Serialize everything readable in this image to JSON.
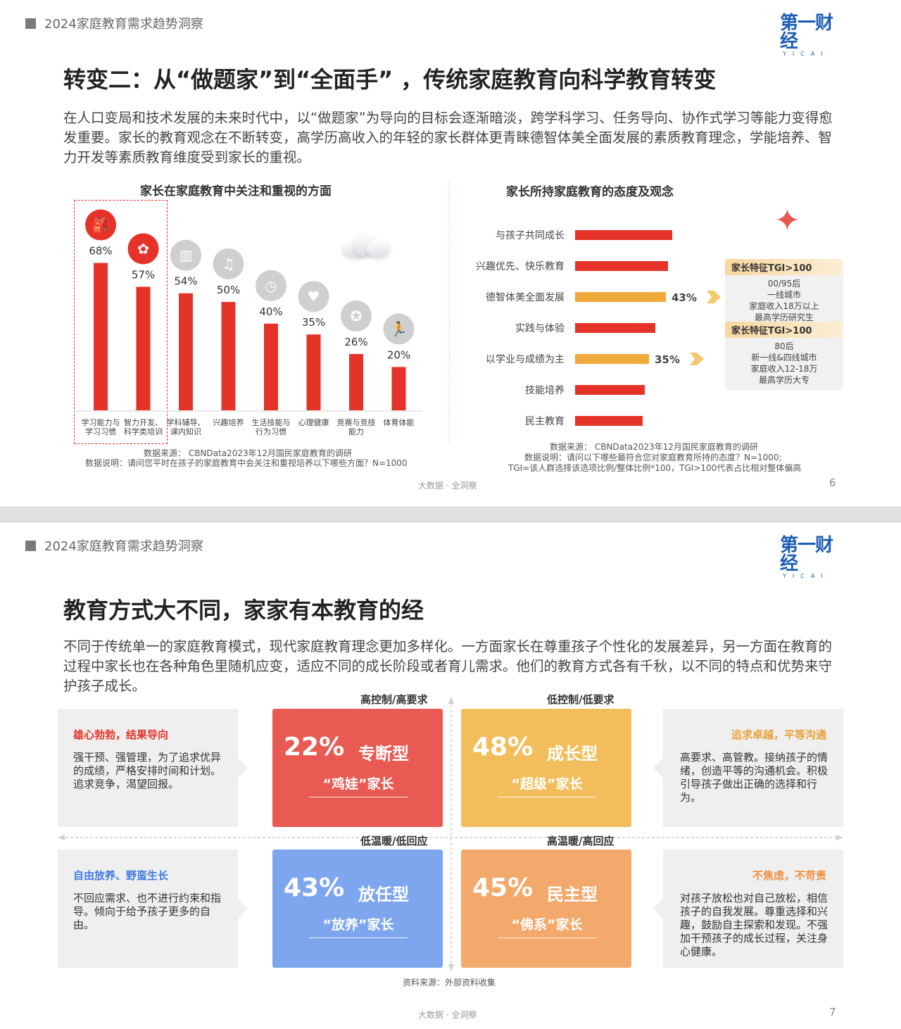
{
  "page1": {
    "header": "2024家庭教育需求趋势洞察",
    "logo": {
      "text": "第一财经",
      "sub": "YICAI"
    },
    "title": "转变二：从“做题家”到“全面手”  ，传统家庭教育向科学教育转变",
    "intro": "在人口变局和技术发展的未来时代中，以“做题家”为导向的目标会逐渐暗淡，跨学科学习、任务导向、协作式学习等能力变得愈发重要。家长的教育观念在不断转变，高学历高收入的年轻的家长群体更青睐德智体美全面发展的素质教育理念，学能培养、智力开发等素质教育维度受到家长的重视。",
    "chart_left_notes": [
      "数据来源： CBNData2023年12月国民家庭教育的调研",
      "数据说明：请问您平时在孩子的家庭教育中会关注和重视培养以下哪些方面？N=1000"
    ],
    "chart_right_notes": [
      "数据来源： CBNData2023年12月国民家庭教育的调研",
      "数据说明：请问以下哪些最符合您对家庭教育所持的态度？N=1000;",
      "TGI=该人群选择该选项比例/整体比例*100，TGI>100代表占比相对整体偏高"
    ],
    "tgi1": {
      "title": "家长特征TGI>100",
      "lines": [
        "00/95后",
        "一线城市",
        "家庭收入18万以上",
        "最高学历研究生"
      ]
    },
    "tgi2": {
      "title": "家长特征TGI>100",
      "lines": [
        "80后",
        "新一线&四线城市",
        "家庭收入12-18万",
        "最高学历大专"
      ]
    },
    "footer": "大数据 · 全洞察",
    "page_number": "6"
  },
  "chart_data": [
    {
      "type": "bar",
      "title": "家长在家庭教育中关注和重视的方面",
      "categories": [
        "学习能力与学习习惯",
        "智力开发、科学类培训",
        "学科辅导、课内知识",
        "兴趣培养",
        "生活技能与行为习惯",
        "心理健康",
        "竞赛与竞技能力",
        "体育体能"
      ],
      "category_labels": [
        [
          "学习能力与",
          "学习习惯"
        ],
        [
          "智力开发、",
          "科学类培训"
        ],
        [
          "学科辅导、",
          "课内知识"
        ],
        [
          "兴趣培养"
        ],
        [
          "生活技能与",
          "行为习惯"
        ],
        [
          "心理健康"
        ],
        [
          "竞赛与竞技",
          "能力"
        ],
        [
          "体育体能"
        ]
      ],
      "values": [
        68,
        57,
        54,
        50,
        40,
        35,
        26,
        20
      ],
      "value_labels": [
        "68%",
        "57%",
        "54%",
        "50%",
        "40%",
        "35%",
        "26%",
        "20%"
      ],
      "highlighted": [
        true,
        true,
        false,
        false,
        false,
        false,
        false,
        false
      ],
      "icons": [
        "backpack-icon",
        "brain-icon",
        "books-icon",
        "music-icon",
        "clock-icon",
        "heart-icon",
        "medal-icon",
        "runner-icon"
      ],
      "ylim": [
        0,
        70
      ],
      "colors": {
        "bar": "#e63329",
        "icon_highlight": "#e63329",
        "icon_muted": "#cfcfcf"
      }
    },
    {
      "type": "bar",
      "orientation": "horizontal",
      "title": "家长所持家庭教育的态度及观念",
      "categories": [
        "与孩子共同成长",
        "兴趣优先、快乐教育",
        "德智体美全面发展",
        "实践与体验",
        "以学业与成绩为主",
        "技能培养",
        "民主教育"
      ],
      "values": [
        46,
        44,
        43,
        38,
        35,
        33,
        32
      ],
      "value_labels": [
        "",
        "",
        "43%",
        "",
        "35%",
        "",
        ""
      ],
      "highlighted": [
        false,
        false,
        true,
        false,
        true,
        false,
        false
      ],
      "xlim": [
        0,
        50
      ],
      "colors": {
        "bar": "#e63329",
        "highlight": "#f0a93b"
      }
    }
  ],
  "page2": {
    "header": "2024家庭教育需求趋势洞察",
    "logo": {
      "text": "第一财经",
      "sub": "YICAI"
    },
    "title": "教育方式大不同，家家有本教育的经",
    "intro": "不同于传统单一的家庭教育模式，现代家庭教育理念更加多样化。一方面家长在尊重孩子个性化的发展差异，另一方面在教育的过程中家长也在各种角色里随机应变，适应不同的成长阶段或者育儿需求。他们的教育方式各有千秋，以不同的特点和优势来守护孩子成长。",
    "axis_labels": {
      "top_left": "高控制/高要求",
      "top_right": "低控制/低要求",
      "mid_left": "低温暖/低回应",
      "mid_right": "高温暖/高回应"
    },
    "cards": [
      {
        "percent": "22%",
        "type": "专断型",
        "label": "“鸡娃”家长",
        "color": "#e85a52"
      },
      {
        "percent": "48%",
        "type": "成长型",
        "label": "“超级”家长",
        "color": "#f2be5c"
      },
      {
        "percent": "43%",
        "type": "放任型",
        "label": "“放养”家长",
        "color": "#7da6ee"
      },
      {
        "percent": "45%",
        "type": "民主型",
        "label": "“佛系”家长",
        "color": "#f2a96b"
      }
    ],
    "descs": [
      {
        "heading": "雄心勃勃，结果导向",
        "body": "强干预、强管理，为了追求优异的成绩，严格安排时间和计划。追求竞争，渴望回报。",
        "color": "#e63329"
      },
      {
        "heading": "追求卓越，平等沟通",
        "body": "高要求、高管教。接纳孩子的情绪，创造平等的沟通机会。积极引导孩子做出正确的选择和行为。",
        "color": "#e8a23a"
      },
      {
        "heading": "自由放养、野蛮生长",
        "body": "不回应需求、也不进行约束和指导。倾向于给予孩子更多的自由。",
        "color": "#3f79e6"
      },
      {
        "heading": "不焦虑，不苛责",
        "body": "对孩子放松也对自己放松，相信孩子的自我发展。尊重选择和兴趣，鼓励自主探索和发现。不强加干预孩子的成长过程，关注身心健康。",
        "color": "#ee8f3d"
      }
    ],
    "source": "资料来源：外部资料收集",
    "footer": "大数据 · 全洞察",
    "page_number": "7"
  }
}
